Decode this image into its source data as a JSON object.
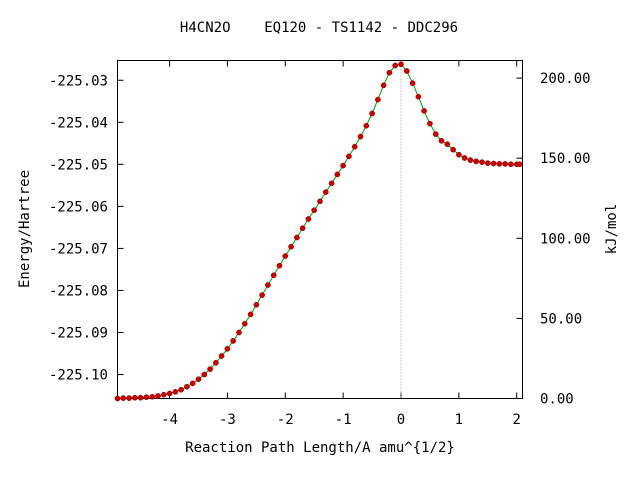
{
  "chart_data": {
    "type": "line",
    "title": "H4CN2O    EQ120 - TS1142 - DDC296",
    "xlabel": "Reaction Path Length/A amu^{1/2}",
    "ylabel": "Energy/Hartree",
    "y2label": "kJ/mol",
    "xlim": [
      -4.9,
      2.1
    ],
    "ylim": [
      -225.1057,
      -225.0253
    ],
    "y2lim": [
      0.0,
      211.0
    ],
    "x_ticks": [
      "-4",
      "-3",
      "-2",
      "-1",
      "0",
      "1",
      "2"
    ],
    "y_ticks": [
      "-225.03",
      "-225.04",
      "-225.05",
      "-225.06",
      "-225.07",
      "-225.08",
      "-225.09",
      "-225.10"
    ],
    "y2_ticks": [
      "0.00",
      "50.00",
      "100.00",
      "150.00",
      "200.00"
    ],
    "grid": false,
    "ts_marker_x": 0.0,
    "line_color": "#00a000",
    "marker_color": "#cc0000",
    "series": [
      {
        "x": [
          -4.9,
          -4.8,
          -4.7,
          -4.6,
          -4.5,
          -4.4,
          -4.3,
          -4.2,
          -4.1,
          -4.0,
          -3.9,
          -3.8,
          -3.7,
          -3.6,
          -3.5,
          -3.4,
          -3.3,
          -3.2,
          -3.1,
          -3.0,
          -2.9,
          -2.8,
          -2.7,
          -2.6,
          -2.5,
          -2.4,
          -2.3,
          -2.2,
          -2.1,
          -2.0,
          -1.9,
          -1.8,
          -1.7,
          -1.6,
          -1.5,
          -1.4,
          -1.3,
          -1.2,
          -1.1,
          -1.0,
          -0.9,
          -0.8,
          -0.7,
          -0.6,
          -0.5,
          -0.4,
          -0.3,
          -0.2,
          -0.1,
          0.0,
          0.1,
          0.2,
          0.3,
          0.4,
          0.5,
          0.6,
          0.7,
          0.8,
          0.9,
          1.0,
          1.1,
          1.2,
          1.3,
          1.4,
          1.5,
          1.6,
          1.7,
          1.8,
          1.9,
          2.0,
          2.05
        ],
        "y": [
          -225.1057,
          -225.1056,
          -225.1056,
          -225.1055,
          -225.1055,
          -225.1054,
          -225.1053,
          -225.1051,
          -225.1048,
          -225.1045,
          -225.1041,
          -225.1036,
          -225.1029,
          -225.1021,
          -225.1011,
          -225.1,
          -225.0987,
          -225.0972,
          -225.0956,
          -225.0939,
          -225.092,
          -225.09,
          -225.0879,
          -225.0857,
          -225.0834,
          -225.0811,
          -225.0787,
          -225.0764,
          -225.0741,
          -225.0718,
          -225.0696,
          -225.0674,
          -225.0652,
          -225.063,
          -225.0609,
          -225.0588,
          -225.0566,
          -225.0545,
          -225.0524,
          -225.0503,
          -225.0481,
          -225.0458,
          -225.0434,
          -225.0408,
          -225.0379,
          -225.0346,
          -225.0312,
          -225.0282,
          -225.0265,
          -225.0262,
          -225.0278,
          -225.0307,
          -225.0339,
          -225.0373,
          -225.0403,
          -225.0428,
          -225.0444,
          -225.0452,
          -225.0465,
          -225.0477,
          -225.0485,
          -225.049,
          -225.0493,
          -225.0495,
          -225.0497,
          -225.0498,
          -225.0499,
          -225.0499,
          -225.05,
          -225.05,
          -225.05
        ]
      }
    ]
  }
}
